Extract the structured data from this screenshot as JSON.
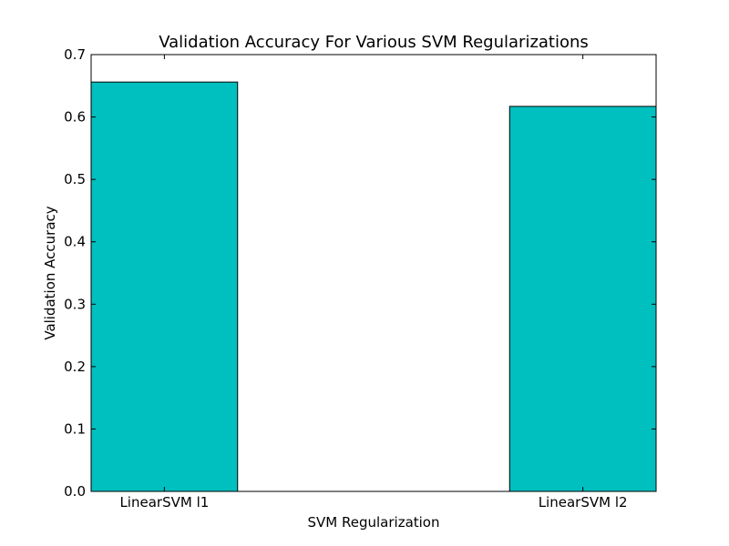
{
  "chart_data": {
    "type": "bar",
    "title": "Validation Accuracy For Various SVM Regularizations",
    "xlabel": "SVM Regularization",
    "ylabel": "Validation Accuracy",
    "categories": [
      "LinearSVM l1",
      "LinearSVM l2"
    ],
    "values": [
      0.656,
      0.617
    ],
    "ylim": [
      0,
      0.7
    ],
    "yticks": [
      "0.0",
      "0.1",
      "0.2",
      "0.3",
      "0.4",
      "0.5",
      "0.6",
      "0.7"
    ],
    "grid": false,
    "legend": "none",
    "bar_color": "#00BFBF"
  }
}
